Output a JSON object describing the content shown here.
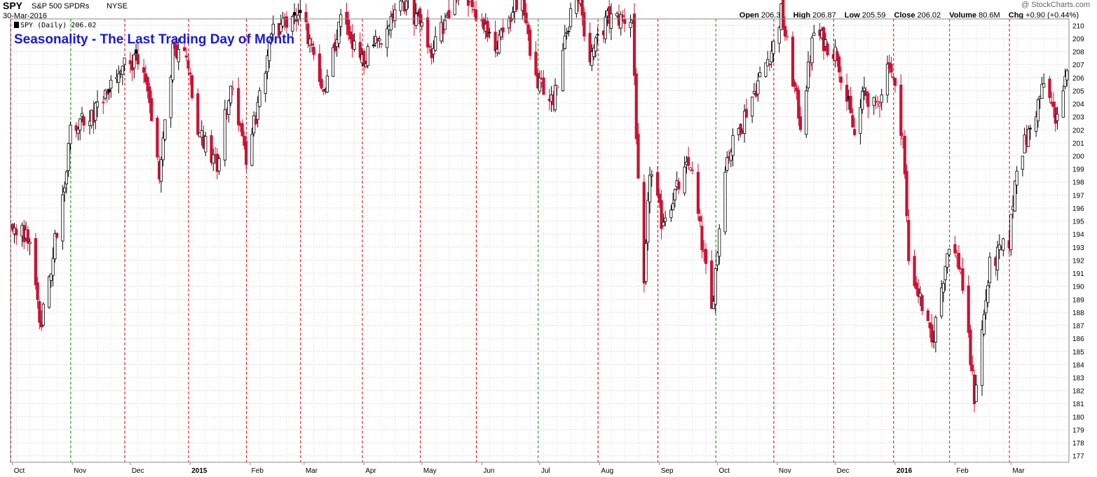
{
  "header": {
    "symbol": "SPY",
    "name": "S&P 500 SPDRs",
    "exchange": "NYSE",
    "date": "30-Mar-2016",
    "brand": "@ StockCharts.com",
    "open_label": "Open",
    "open": "206.30",
    "high_label": "High",
    "high": "206.87",
    "low_label": "Low",
    "low": "205.59",
    "close_label": "Close",
    "close": "206.02",
    "volume_label": "Volume",
    "volume": "80.6M",
    "chg_label": "Chg",
    "chg": "+0.90 (+0.44%)",
    "legend": "SPY (Daily) 206.02",
    "overlay_title": "Seasonality - The Last Trading Day of Month"
  },
  "colors": {
    "up_candle": "#000000",
    "down_candle": "#cc1133",
    "month_end_down": "#dd0000",
    "month_end_up": "#118811",
    "title": "#1a1ad6"
  },
  "chart_data": {
    "type": "candlestick",
    "title": "Seasonality - The Last Trading Day of Month",
    "ylim": [
      176.5,
      210.5
    ],
    "yticks": [
      177,
      178,
      179,
      180,
      181,
      182,
      183,
      184,
      185,
      186,
      187,
      188,
      189,
      190,
      191,
      192,
      193,
      194,
      195,
      196,
      197,
      198,
      199,
      200,
      201,
      202,
      203,
      204,
      205,
      206,
      207,
      208,
      209,
      210
    ],
    "xlabels": [
      "Oct",
      "Nov",
      "Dec",
      "2015",
      "Feb",
      "Mar",
      "Apr",
      "May",
      "Jun",
      "Jul",
      "Aug",
      "Sep",
      "Oct",
      "Nov",
      "Dec",
      "2016",
      "Feb",
      "Mar"
    ],
    "bold_xlabels": [
      "2015",
      "2016"
    ],
    "grid": true,
    "month_end_markers": [
      {
        "date": "2014-09-30",
        "color": "red"
      },
      {
        "date": "2014-10-31",
        "color": "green"
      },
      {
        "date": "2014-11-28",
        "color": "red"
      },
      {
        "date": "2014-12-31",
        "color": "red"
      },
      {
        "date": "2015-01-30",
        "color": "red"
      },
      {
        "date": "2015-02-27",
        "color": "red"
      },
      {
        "date": "2015-03-31",
        "color": "red"
      },
      {
        "date": "2015-04-30",
        "color": "red"
      },
      {
        "date": "2015-05-29",
        "color": "red"
      },
      {
        "date": "2015-06-30",
        "color": "green"
      },
      {
        "date": "2015-07-31",
        "color": "red"
      },
      {
        "date": "2015-08-31",
        "color": "red"
      },
      {
        "date": "2015-09-30",
        "color": "green"
      },
      {
        "date": "2015-10-30",
        "color": "red"
      },
      {
        "date": "2015-11-30",
        "color": "red"
      },
      {
        "date": "2015-12-31",
        "color": "red"
      },
      {
        "date": "2016-01-29",
        "color": "green"
      },
      {
        "date": "2016-02-29",
        "color": "red"
      }
    ],
    "close_path": [
      {
        "date": "2014-10-01",
        "close": 194.4
      },
      {
        "date": "2014-10-08",
        "close": 194.0
      },
      {
        "date": "2014-10-13",
        "close": 190.5
      },
      {
        "date": "2014-10-15",
        "close": 186.8
      },
      {
        "date": "2014-10-17",
        "close": 188.5
      },
      {
        "date": "2014-10-22",
        "close": 192.5
      },
      {
        "date": "2014-10-28",
        "close": 197.5
      },
      {
        "date": "2014-10-31",
        "close": 201.8
      },
      {
        "date": "2014-11-14",
        "close": 203.5
      },
      {
        "date": "2014-11-28",
        "close": 207.0
      },
      {
        "date": "2014-12-05",
        "close": 207.6
      },
      {
        "date": "2014-12-10",
        "close": 205.0
      },
      {
        "date": "2014-12-16",
        "close": 198.5
      },
      {
        "date": "2014-12-23",
        "close": 208.0
      },
      {
        "date": "2014-12-29",
        "close": 208.6
      },
      {
        "date": "2015-01-06",
        "close": 201.5
      },
      {
        "date": "2015-01-15",
        "close": 199.5
      },
      {
        "date": "2015-01-22",
        "close": 205.5
      },
      {
        "date": "2015-01-30",
        "close": 199.5
      },
      {
        "date": "2015-02-13",
        "close": 209.5
      },
      {
        "date": "2015-02-27",
        "close": 211.0
      },
      {
        "date": "2015-03-11",
        "close": 205.0
      },
      {
        "date": "2015-03-20",
        "close": 210.5
      },
      {
        "date": "2015-03-31",
        "close": 207.0
      },
      {
        "date": "2015-04-13",
        "close": 210.0
      },
      {
        "date": "2015-04-24",
        "close": 211.8
      },
      {
        "date": "2015-05-06",
        "close": 208.0
      },
      {
        "date": "2015-05-21",
        "close": 213.0
      },
      {
        "date": "2015-06-09",
        "close": 208.5
      },
      {
        "date": "2015-06-22",
        "close": 212.5
      },
      {
        "date": "2015-06-29",
        "close": 205.4
      },
      {
        "date": "2015-07-08",
        "close": 204.5
      },
      {
        "date": "2015-07-20",
        "close": 213.0
      },
      {
        "date": "2015-07-27",
        "close": 207.5
      },
      {
        "date": "2015-08-05",
        "close": 210.5
      },
      {
        "date": "2015-08-18",
        "close": 210.5
      },
      {
        "date": "2015-08-21",
        "close": 197.5
      },
      {
        "date": "2015-08-24",
        "close": 189.5
      },
      {
        "date": "2015-08-27",
        "close": 199.0
      },
      {
        "date": "2015-09-02",
        "close": 195.0
      },
      {
        "date": "2015-09-17",
        "close": 199.5
      },
      {
        "date": "2015-09-28",
        "close": 188.0
      },
      {
        "date": "2015-10-05",
        "close": 199.5
      },
      {
        "date": "2015-10-16",
        "close": 203.5
      },
      {
        "date": "2015-10-30",
        "close": 208.5
      },
      {
        "date": "2015-11-03",
        "close": 211.0
      },
      {
        "date": "2015-11-13",
        "close": 202.5
      },
      {
        "date": "2015-11-20",
        "close": 209.5
      },
      {
        "date": "2015-12-02",
        "close": 207.8
      },
      {
        "date": "2015-12-11",
        "close": 201.5
      },
      {
        "date": "2015-12-16",
        "close": 205.0
      },
      {
        "date": "2015-12-22",
        "close": 203.5
      },
      {
        "date": "2015-12-29",
        "close": 207.4
      },
      {
        "date": "2016-01-05",
        "close": 201.5
      },
      {
        "date": "2016-01-08",
        "close": 192.0
      },
      {
        "date": "2016-01-15",
        "close": 188.5
      },
      {
        "date": "2016-01-20",
        "close": 185.5
      },
      {
        "date": "2016-01-29",
        "close": 193.5
      },
      {
        "date": "2016-02-04",
        "close": 191.3
      },
      {
        "date": "2016-02-11",
        "close": 181.5
      },
      {
        "date": "2016-02-19",
        "close": 191.5
      },
      {
        "date": "2016-02-29",
        "close": 193.5
      },
      {
        "date": "2016-03-04",
        "close": 199.5
      },
      {
        "date": "2016-03-11",
        "close": 202.0
      },
      {
        "date": "2016-03-18",
        "close": 205.5
      },
      {
        "date": "2016-03-24",
        "close": 203.0
      },
      {
        "date": "2016-03-30",
        "close": 206.0
      }
    ]
  }
}
